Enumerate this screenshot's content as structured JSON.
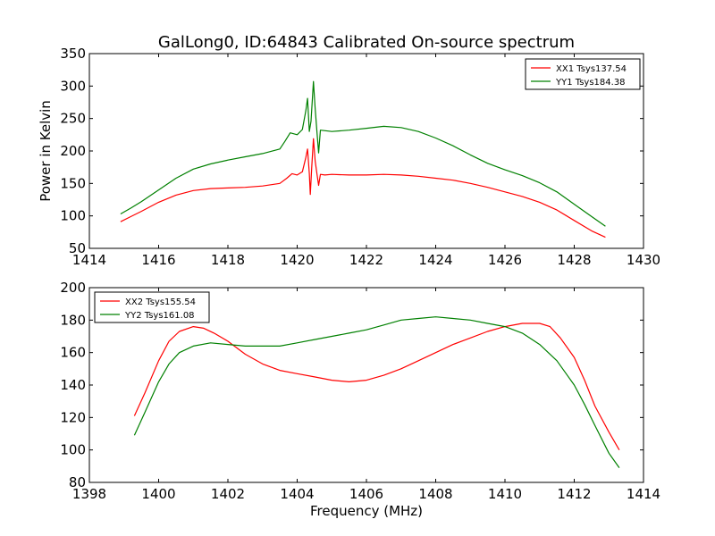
{
  "figure_title": "GalLong0, ID:64843 Calibrated On-source spectrum",
  "chart_data": [
    {
      "type": "line",
      "title": "",
      "xlabel": "",
      "ylabel": "Power in Kelvin",
      "xlim": [
        1414,
        1430
      ],
      "ylim": [
        50,
        350
      ],
      "xticks": [
        1414,
        1416,
        1418,
        1420,
        1422,
        1424,
        1426,
        1428,
        1430
      ],
      "yticks": [
        50,
        100,
        150,
        200,
        250,
        300,
        350
      ],
      "grid": false,
      "legend_position": "upper right",
      "series": [
        {
          "name": "XX1 Tsys137.54",
          "color": "#ff0000",
          "points": [
            [
              1414.9,
              91
            ],
            [
              1415.2,
              99
            ],
            [
              1415.5,
              107
            ],
            [
              1416.0,
              121
            ],
            [
              1416.5,
              132
            ],
            [
              1417.0,
              139
            ],
            [
              1417.5,
              142
            ],
            [
              1418.0,
              143
            ],
            [
              1418.5,
              144
            ],
            [
              1419.0,
              146
            ],
            [
              1419.5,
              150
            ],
            [
              1419.7,
              158
            ],
            [
              1419.85,
              165
            ],
            [
              1420.0,
              163
            ],
            [
              1420.15,
              168
            ],
            [
              1420.25,
              190
            ],
            [
              1420.3,
              203
            ],
            [
              1420.35,
              165
            ],
            [
              1420.38,
              133
            ],
            [
              1420.42,
              175
            ],
            [
              1420.47,
              219
            ],
            [
              1420.52,
              185
            ],
            [
              1420.57,
              165
            ],
            [
              1420.62,
              147
            ],
            [
              1420.67,
              164
            ],
            [
              1420.8,
              163
            ],
            [
              1421.0,
              164
            ],
            [
              1421.5,
              163
            ],
            [
              1422.0,
              163
            ],
            [
              1422.5,
              164
            ],
            [
              1423.0,
              163
            ],
            [
              1423.5,
              161
            ],
            [
              1424.0,
              158
            ],
            [
              1424.5,
              155
            ],
            [
              1425.0,
              150
            ],
            [
              1425.5,
              144
            ],
            [
              1426.0,
              137
            ],
            [
              1426.5,
              130
            ],
            [
              1427.0,
              121
            ],
            [
              1427.5,
              109
            ],
            [
              1428.0,
              93
            ],
            [
              1428.5,
              77
            ],
            [
              1428.9,
              67
            ]
          ]
        },
        {
          "name": "YY1 Tsys184.38",
          "color": "#008000",
          "points": [
            [
              1414.9,
              103
            ],
            [
              1415.2,
              112
            ],
            [
              1415.5,
              122
            ],
            [
              1416.0,
              140
            ],
            [
              1416.5,
              158
            ],
            [
              1417.0,
              172
            ],
            [
              1417.5,
              180
            ],
            [
              1418.0,
              186
            ],
            [
              1418.5,
              191
            ],
            [
              1419.0,
              196
            ],
            [
              1419.5,
              203
            ],
            [
              1419.65,
              215
            ],
            [
              1419.8,
              228
            ],
            [
              1420.0,
              225
            ],
            [
              1420.15,
              233
            ],
            [
              1420.25,
              262
            ],
            [
              1420.3,
              281
            ],
            [
              1420.35,
              230
            ],
            [
              1420.4,
              246
            ],
            [
              1420.47,
              307
            ],
            [
              1420.52,
              266
            ],
            [
              1420.57,
              230
            ],
            [
              1420.62,
              197
            ],
            [
              1420.67,
              232
            ],
            [
              1421.0,
              230
            ],
            [
              1421.5,
              232
            ],
            [
              1422.0,
              235
            ],
            [
              1422.5,
              238
            ],
            [
              1423.0,
              236
            ],
            [
              1423.5,
              230
            ],
            [
              1424.0,
              220
            ],
            [
              1424.5,
              208
            ],
            [
              1425.0,
              194
            ],
            [
              1425.5,
              181
            ],
            [
              1426.0,
              171
            ],
            [
              1426.5,
              162
            ],
            [
              1427.0,
              151
            ],
            [
              1427.5,
              137
            ],
            [
              1428.0,
              118
            ],
            [
              1428.5,
              99
            ],
            [
              1428.9,
              84
            ]
          ]
        }
      ]
    },
    {
      "type": "line",
      "title": "",
      "xlabel": "Frequency (MHz)",
      "ylabel": "",
      "xlim": [
        1398,
        1414
      ],
      "ylim": [
        80,
        200
      ],
      "xticks": [
        1398,
        1400,
        1402,
        1404,
        1406,
        1408,
        1410,
        1412,
        1414
      ],
      "yticks": [
        80,
        100,
        120,
        140,
        160,
        180,
        200
      ],
      "grid": false,
      "legend_position": "upper left",
      "series": [
        {
          "name": "XX2 Tsys155.54",
          "color": "#ff0000",
          "points": [
            [
              1399.3,
              121
            ],
            [
              1399.6,
              135
            ],
            [
              1400.0,
              155
            ],
            [
              1400.3,
              167
            ],
            [
              1400.6,
              173
            ],
            [
              1401.0,
              176
            ],
            [
              1401.3,
              175
            ],
            [
              1401.6,
              172
            ],
            [
              1402.0,
              167
            ],
            [
              1402.5,
              159
            ],
            [
              1403.0,
              153
            ],
            [
              1403.5,
              149
            ],
            [
              1404.0,
              147
            ],
            [
              1404.5,
              145
            ],
            [
              1405.0,
              143
            ],
            [
              1405.5,
              142
            ],
            [
              1406.0,
              143
            ],
            [
              1406.5,
              146
            ],
            [
              1407.0,
              150
            ],
            [
              1407.5,
              155
            ],
            [
              1408.0,
              160
            ],
            [
              1408.5,
              165
            ],
            [
              1409.0,
              169
            ],
            [
              1409.5,
              173
            ],
            [
              1410.0,
              176
            ],
            [
              1410.5,
              178
            ],
            [
              1411.0,
              178
            ],
            [
              1411.3,
              176
            ],
            [
              1411.6,
              169
            ],
            [
              1412.0,
              157
            ],
            [
              1412.3,
              143
            ],
            [
              1412.6,
              127
            ],
            [
              1413.0,
              111
            ],
            [
              1413.3,
              100
            ]
          ]
        },
        {
          "name": "YY2 Tsys161.08",
          "color": "#008000",
          "points": [
            [
              1399.3,
              109
            ],
            [
              1399.6,
              123
            ],
            [
              1400.0,
              142
            ],
            [
              1400.3,
              153
            ],
            [
              1400.6,
              160
            ],
            [
              1401.0,
              164
            ],
            [
              1401.5,
              166
            ],
            [
              1402.0,
              165
            ],
            [
              1402.5,
              164
            ],
            [
              1403.0,
              164
            ],
            [
              1403.5,
              164
            ],
            [
              1404.0,
              166
            ],
            [
              1404.5,
              168
            ],
            [
              1405.0,
              170
            ],
            [
              1405.5,
              172
            ],
            [
              1406.0,
              174
            ],
            [
              1406.5,
              177
            ],
            [
              1407.0,
              180
            ],
            [
              1407.5,
              181
            ],
            [
              1408.0,
              182
            ],
            [
              1408.5,
              181
            ],
            [
              1409.0,
              180
            ],
            [
              1409.5,
              178
            ],
            [
              1410.0,
              176
            ],
            [
              1410.5,
              172
            ],
            [
              1411.0,
              165
            ],
            [
              1411.5,
              155
            ],
            [
              1412.0,
              140
            ],
            [
              1412.3,
              128
            ],
            [
              1412.6,
              115
            ],
            [
              1413.0,
              98
            ],
            [
              1413.3,
              89
            ]
          ]
        }
      ]
    }
  ]
}
